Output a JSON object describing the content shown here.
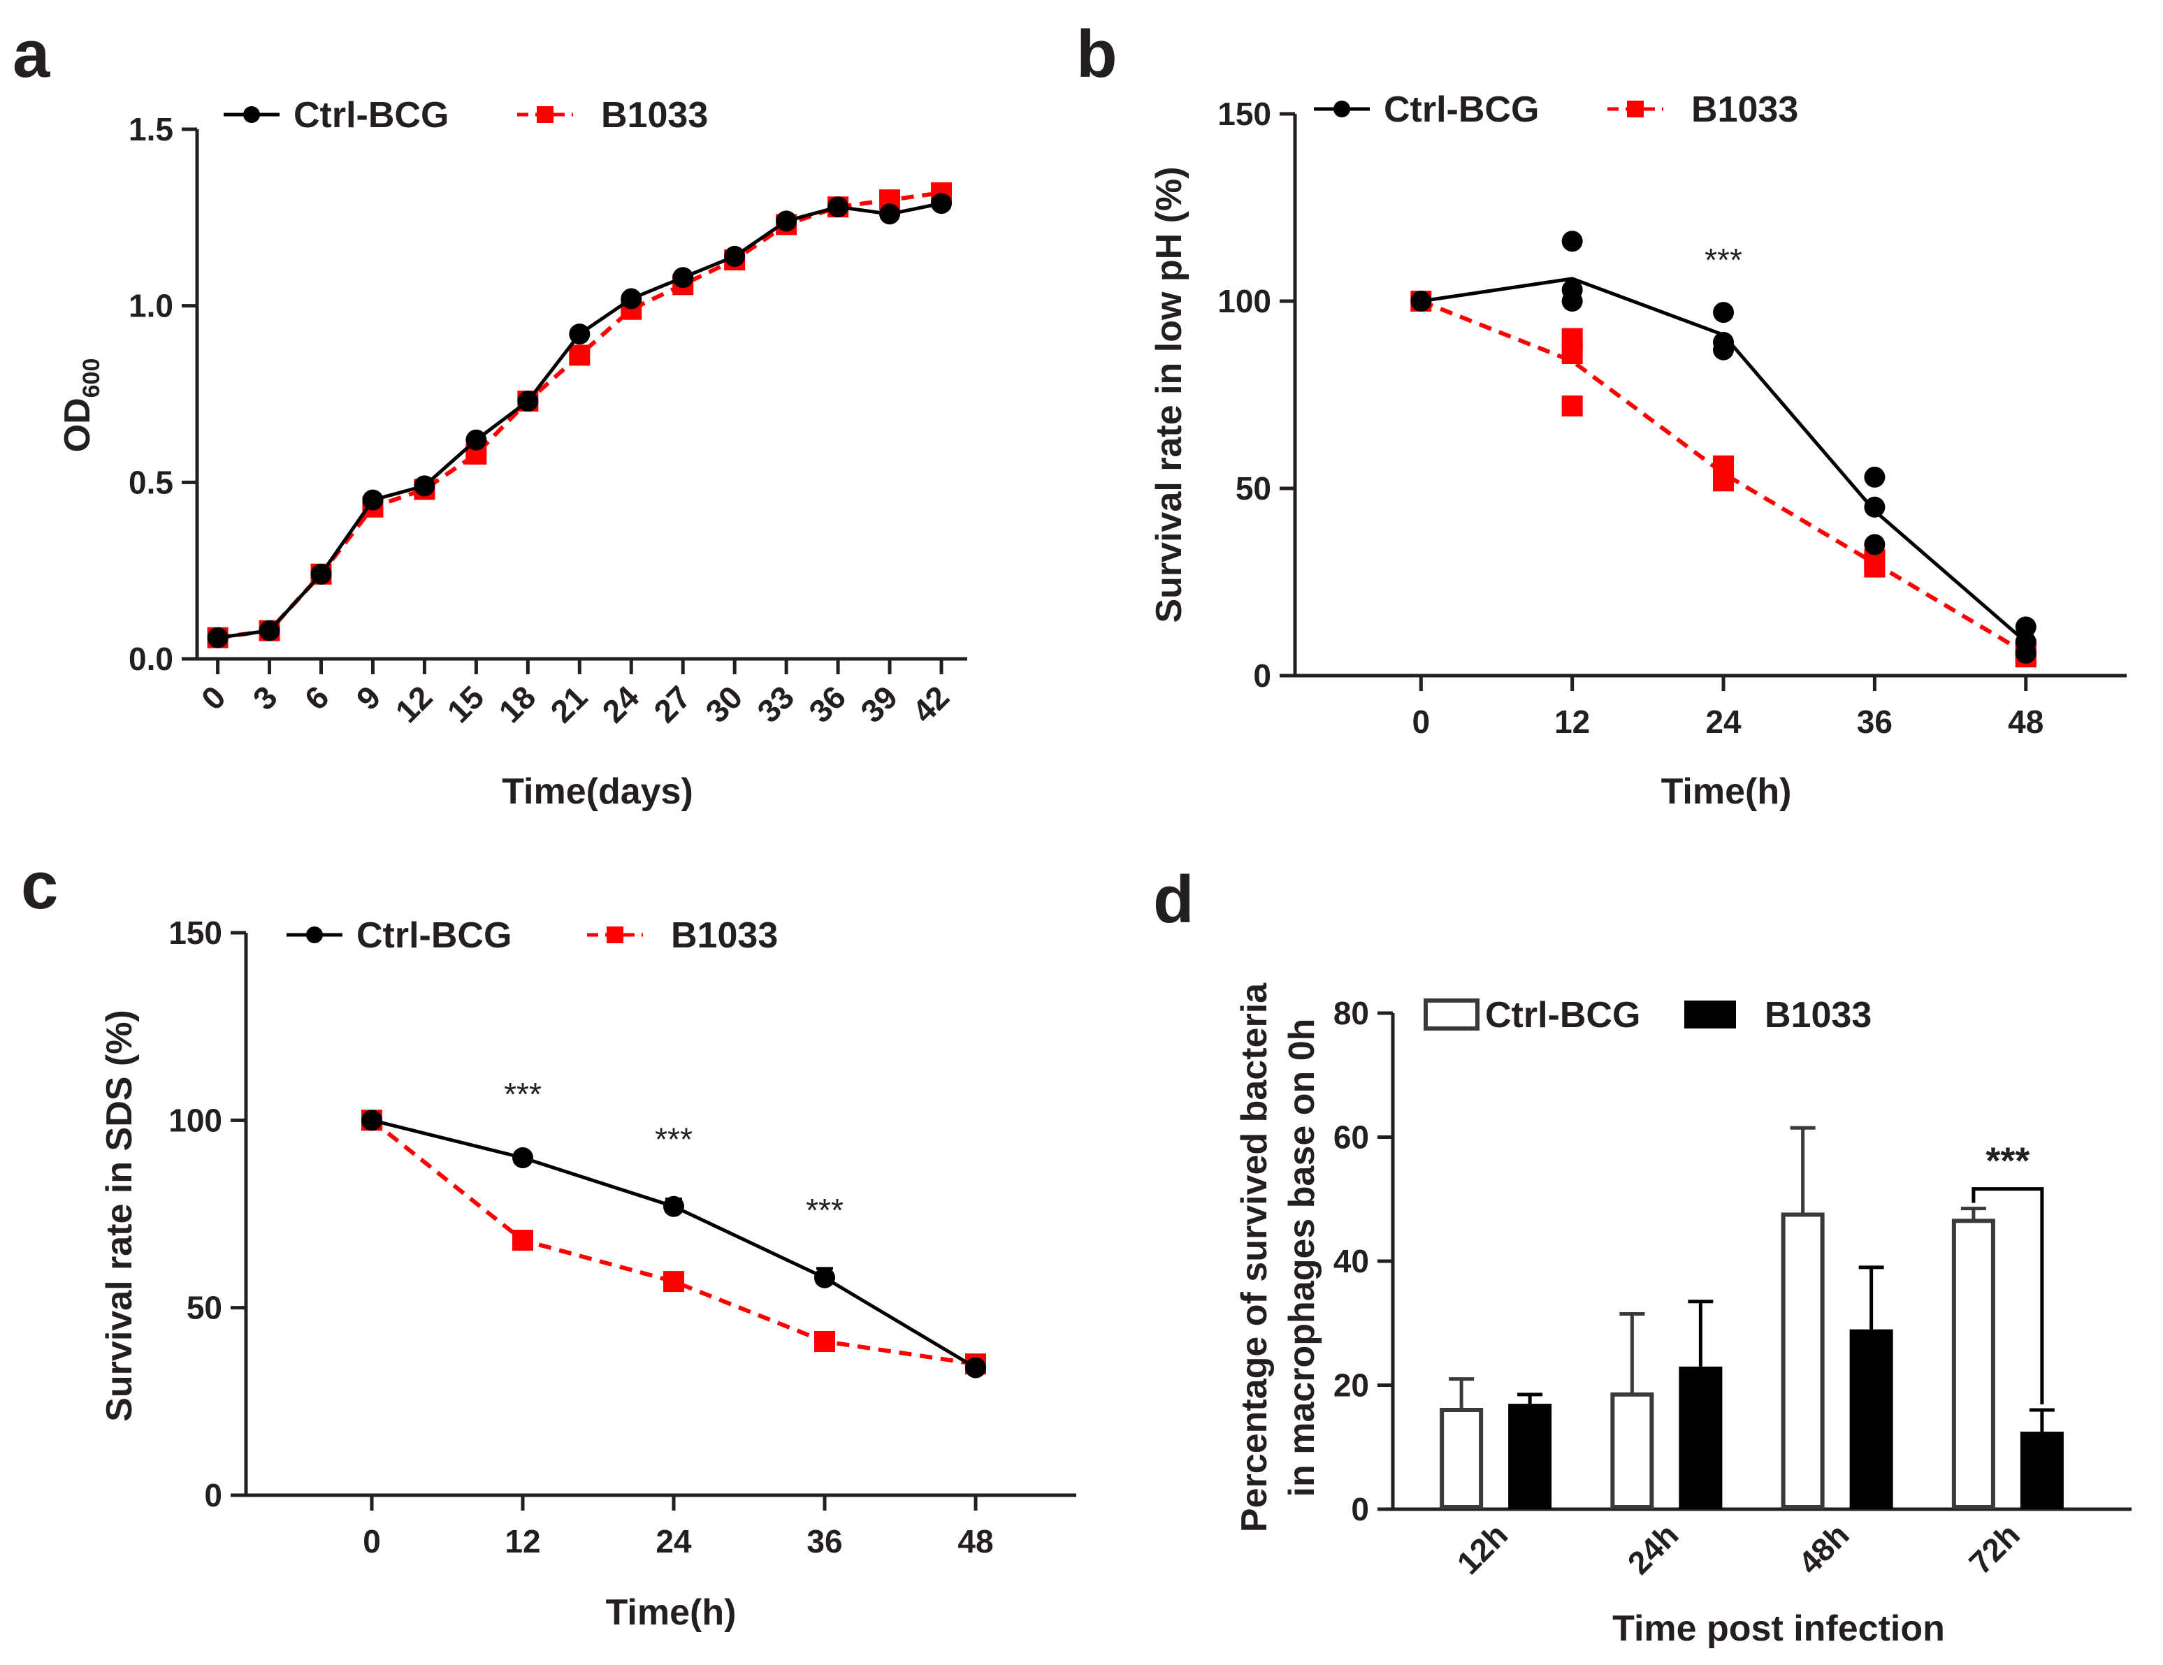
{
  "colors": {
    "ctrl": "#000000",
    "b1033": "#ff0000",
    "axis": "#231f20"
  },
  "chart_data": [
    {
      "id": "a",
      "panel_label": "a",
      "type": "line",
      "xlabel": "Time(days)",
      "ylabel": "OD",
      "ylabel_sub": "600",
      "x": [
        0,
        3,
        6,
        9,
        12,
        15,
        18,
        21,
        24,
        27,
        30,
        33,
        36,
        39,
        42
      ],
      "xticks": [
        "0",
        "3",
        "6",
        "9",
        "12",
        "15",
        "18",
        "21",
        "24",
        "27",
        "30",
        "33",
        "36",
        "39",
        "42"
      ],
      "yticks": [
        "0.0",
        "0.5",
        "1.0",
        "1.5"
      ],
      "ylim": [
        0,
        1.5
      ],
      "series": [
        {
          "name": "Ctrl-BCG",
          "values": [
            0.06,
            0.08,
            0.24,
            0.45,
            0.49,
            0.62,
            0.73,
            0.92,
            1.02,
            1.08,
            1.14,
            1.24,
            1.28,
            1.26,
            1.29
          ]
        },
        {
          "name": "B1033",
          "values": [
            0.06,
            0.08,
            0.24,
            0.43,
            0.48,
            0.58,
            0.73,
            0.86,
            0.99,
            1.06,
            1.13,
            1.23,
            1.28,
            1.3,
            1.32
          ]
        }
      ]
    },
    {
      "id": "b",
      "panel_label": "b",
      "type": "line",
      "xlabel": "Time(h)",
      "ylabel": "Survival rate in low pH (%)",
      "x": [
        0,
        12,
        24,
        36,
        48
      ],
      "xticks": [
        "0",
        "12",
        "24",
        "36",
        "48"
      ],
      "yticks": [
        "0",
        "50",
        "100",
        "150"
      ],
      "ylim": [
        0,
        150
      ],
      "series": [
        {
          "name": "Ctrl-BCG",
          "values": [
            100,
            106,
            91,
            44,
            9
          ],
          "points": [
            [
              0,
              100
            ],
            [
              12,
              116
            ],
            [
              12,
              103
            ],
            [
              12,
              100
            ],
            [
              24,
              97
            ],
            [
              24,
              89
            ],
            [
              24,
              87
            ],
            [
              36,
              53
            ],
            [
              36,
              45
            ],
            [
              36,
              35
            ],
            [
              48,
              13
            ],
            [
              48,
              9
            ],
            [
              48,
              6
            ]
          ]
        },
        {
          "name": "B1033",
          "values": [
            100,
            84,
            54,
            30,
            6
          ],
          "points": [
            [
              0,
              100
            ],
            [
              12,
              90
            ],
            [
              12,
              86
            ],
            [
              12,
              72
            ],
            [
              24,
              56
            ],
            [
              24,
              54
            ],
            [
              24,
              52
            ],
            [
              36,
              31
            ],
            [
              36,
              30
            ],
            [
              36,
              29
            ],
            [
              48,
              7
            ],
            [
              48,
              6
            ],
            [
              48,
              5
            ]
          ]
        }
      ],
      "annotations": [
        {
          "x": 24,
          "y": 108,
          "text": "***"
        }
      ]
    },
    {
      "id": "c",
      "panel_label": "c",
      "type": "line",
      "xlabel": "Time(h)",
      "ylabel": "Survival rate in SDS (%)",
      "x": [
        0,
        12,
        24,
        36,
        48
      ],
      "xticks": [
        "0",
        "12",
        "24",
        "36",
        "48"
      ],
      "yticks": [
        "0",
        "50",
        "100",
        "150"
      ],
      "ylim": [
        0,
        150
      ],
      "series": [
        {
          "name": "Ctrl-BCG",
          "values": [
            100,
            90,
            77,
            58,
            34
          ],
          "errors": [
            0,
            1,
            2,
            2.5,
            1
          ]
        },
        {
          "name": "B1033",
          "values": [
            100,
            68,
            57,
            41,
            35
          ],
          "errors": [
            0,
            1,
            1,
            1,
            1
          ]
        }
      ],
      "annotations": [
        {
          "x": 12,
          "y": 104,
          "text": "***"
        },
        {
          "x": 24,
          "y": 92,
          "text": "***"
        },
        {
          "x": 36,
          "y": 73,
          "text": "***"
        }
      ]
    },
    {
      "id": "d",
      "panel_label": "d",
      "type": "bar",
      "xlabel": "Time post infection",
      "ylabel_line1": "Percentage of survived bacteria",
      "ylabel_line2": "in macrophages base on 0h",
      "categories": [
        "12h",
        "24h",
        "48h",
        "72h"
      ],
      "yticks": [
        "0",
        "20",
        "40",
        "60",
        "80"
      ],
      "ylim": [
        0,
        80
      ],
      "series": [
        {
          "name": "Ctrl-BCG",
          "values": [
            16,
            18.5,
            47.5,
            46.5
          ],
          "errors": [
            5,
            13,
            14,
            2
          ]
        },
        {
          "name": "B1033",
          "values": [
            17,
            23,
            29,
            12.5
          ],
          "errors": [
            1.5,
            10.5,
            10,
            3.5
          ]
        }
      ],
      "annotations": [
        {
          "category": "72h",
          "text": "***"
        }
      ]
    }
  ]
}
